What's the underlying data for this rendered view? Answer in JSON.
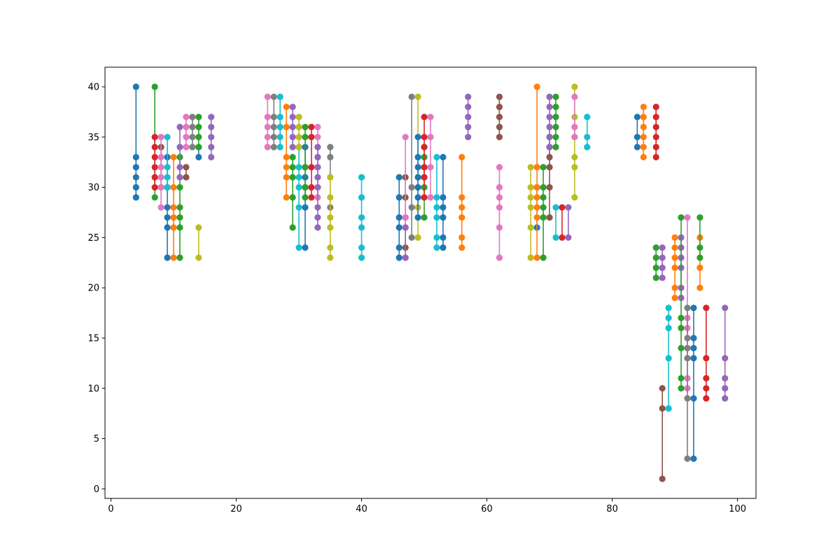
{
  "chart_data": {
    "type": "line",
    "title": "",
    "xlabel": "",
    "ylabel": "",
    "xlim": [
      -0.95,
      102.95
    ],
    "ylim": [
      -0.95,
      41.95
    ],
    "xticks": [
      0,
      20,
      40,
      60,
      80,
      100
    ],
    "yticks": [
      0,
      5,
      10,
      15,
      20,
      25,
      30,
      35,
      40
    ],
    "grid": false,
    "legend": "none",
    "marker": "circle",
    "series": [
      {
        "color": "#1f77b4",
        "x": 4,
        "y": [
          29,
          30,
          31,
          32,
          33,
          40
        ]
      },
      {
        "color": "#2ca02c",
        "x": 7,
        "y": [
          29,
          40
        ]
      },
      {
        "color": "#d62728",
        "x": 7,
        "y": [
          30,
          31,
          32,
          33,
          34,
          35
        ]
      },
      {
        "color": "#8c564b",
        "x": 8,
        "y": [
          30,
          34
        ]
      },
      {
        "color": "#e377c2",
        "x": 8,
        "y": [
          28,
          30,
          31,
          32,
          33,
          35
        ]
      },
      {
        "color": "#1f77b4",
        "x": 9,
        "y": [
          23,
          26,
          27,
          28,
          30,
          33
        ]
      },
      {
        "color": "#17becf",
        "x": 9,
        "y": [
          30,
          31,
          32,
          35
        ]
      },
      {
        "color": "#ff7f0e",
        "x": 10,
        "y": [
          23,
          26,
          27,
          28,
          30,
          33
        ]
      },
      {
        "color": "#2ca02c",
        "x": 11,
        "y": [
          23,
          26,
          27,
          28,
          30,
          33
        ]
      },
      {
        "color": "#9467bd",
        "x": 11,
        "y": [
          31,
          32,
          34,
          36
        ]
      },
      {
        "color": "#8c564b",
        "x": 12,
        "y": [
          31,
          32
        ]
      },
      {
        "color": "#e377c2",
        "x": 12,
        "y": [
          34,
          35,
          36,
          37
        ]
      },
      {
        "color": "#7f7f7f",
        "x": 13,
        "y": [
          34,
          35,
          36,
          37
        ]
      },
      {
        "color": "#1f77b4",
        "x": 14,
        "y": [
          33,
          34
        ]
      },
      {
        "color": "#2ca02c",
        "x": 14,
        "y": [
          34,
          35,
          36,
          37
        ]
      },
      {
        "color": "#bcbd22",
        "x": 14,
        "y": [
          23,
          26
        ]
      },
      {
        "color": "#9467bd",
        "x": 16,
        "y": [
          33,
          34,
          35,
          36,
          37
        ]
      },
      {
        "color": "#e377c2",
        "x": 25,
        "y": [
          34,
          35,
          36,
          37,
          39
        ]
      },
      {
        "color": "#7f7f7f",
        "x": 26,
        "y": [
          34,
          35,
          36,
          37,
          39
        ]
      },
      {
        "color": "#17becf",
        "x": 27,
        "y": [
          34,
          35,
          36,
          37,
          39
        ]
      },
      {
        "color": "#ff7f0e",
        "x": 28,
        "y": [
          29,
          31,
          32,
          33,
          36,
          38
        ]
      },
      {
        "color": "#2ca02c",
        "x": 29,
        "y": [
          26,
          29,
          31,
          32,
          33
        ]
      },
      {
        "color": "#9467bd",
        "x": 29,
        "y": [
          34,
          35,
          36,
          37,
          38
        ]
      },
      {
        "color": "#17becf",
        "x": 30,
        "y": [
          24,
          28,
          30,
          31,
          32,
          34
        ]
      },
      {
        "color": "#bcbd22",
        "x": 30,
        "y": [
          34,
          35,
          36,
          37
        ]
      },
      {
        "color": "#1f77b4",
        "x": 31,
        "y": [
          24,
          28,
          30,
          31,
          32,
          34
        ]
      },
      {
        "color": "#2ca02c",
        "x": 31,
        "y": [
          29,
          30,
          32,
          35,
          36
        ]
      },
      {
        "color": "#d62728",
        "x": 32,
        "y": [
          29,
          30,
          32,
          35,
          36
        ]
      },
      {
        "color": "#e377c2",
        "x": 33,
        "y": [
          29,
          30,
          32,
          33,
          35,
          36
        ]
      },
      {
        "color": "#9467bd",
        "x": 33,
        "y": [
          26,
          27,
          28,
          30,
          31,
          32,
          33,
          34
        ]
      },
      {
        "color": "#7f7f7f",
        "x": 35,
        "y": [
          28,
          33,
          34
        ]
      },
      {
        "color": "#bcbd22",
        "x": 35,
        "y": [
          23,
          24,
          26,
          27,
          29,
          31
        ]
      },
      {
        "color": "#17becf",
        "x": 40,
        "y": [
          23,
          24,
          26,
          27,
          29,
          31
        ]
      },
      {
        "color": "#1f77b4",
        "x": 46,
        "y": [
          23,
          24,
          26,
          27,
          29,
          31
        ]
      },
      {
        "color": "#8c564b",
        "x": 47,
        "y": [
          24,
          26,
          27,
          29,
          31
        ]
      },
      {
        "color": "#e377c2",
        "x": 47,
        "y": [
          23,
          26,
          27,
          35
        ]
      },
      {
        "color": "#9467bd",
        "x": 47,
        "y": [
          23,
          26
        ]
      },
      {
        "color": "#7f7f7f",
        "x": 48,
        "y": [
          25,
          28,
          30,
          39
        ]
      },
      {
        "color": "#bcbd22",
        "x": 49,
        "y": [
          25,
          28,
          30,
          39
        ]
      },
      {
        "color": "#1f77b4",
        "x": 49,
        "y": [
          27,
          29,
          30,
          31,
          32,
          33,
          35
        ]
      },
      {
        "color": "#2ca02c",
        "x": 50,
        "y": [
          27,
          30,
          31,
          32,
          33,
          34
        ]
      },
      {
        "color": "#d62728",
        "x": 50,
        "y": [
          29,
          31,
          32,
          34,
          35,
          37
        ]
      },
      {
        "color": "#e377c2",
        "x": 51,
        "y": [
          29,
          32,
          35,
          37
        ]
      },
      {
        "color": "#17becf",
        "x": 52,
        "y": [
          24,
          25,
          27,
          28,
          29,
          33
        ]
      },
      {
        "color": "#1f77b4",
        "x": 53,
        "y": [
          24,
          25,
          27,
          28,
          29,
          33
        ]
      },
      {
        "color": "#ff7f0e",
        "x": 56,
        "y": [
          24,
          25,
          27,
          28,
          29,
          33
        ]
      },
      {
        "color": "#9467bd",
        "x": 57,
        "y": [
          35,
          36,
          37,
          38,
          39
        ]
      },
      {
        "color": "#e377c2",
        "x": 62,
        "y": [
          23,
          26,
          28,
          29,
          30,
          32
        ]
      },
      {
        "color": "#8c564b",
        "x": 62,
        "y": [
          35,
          36,
          37,
          38,
          39
        ]
      },
      {
        "color": "#bcbd22",
        "x": 67,
        "y": [
          23,
          26,
          28,
          29,
          30,
          32
        ]
      },
      {
        "color": "#1f77b4",
        "x": 68,
        "y": [
          26,
          30
        ]
      },
      {
        "color": "#ff7f0e",
        "x": 68,
        "y": [
          23,
          27,
          28,
          29,
          30,
          32,
          40
        ]
      },
      {
        "color": "#2ca02c",
        "x": 69,
        "y": [
          23,
          27,
          28,
          29,
          30,
          32
        ]
      },
      {
        "color": "#8c564b",
        "x": 70,
        "y": [
          27,
          30,
          32,
          33,
          34,
          35
        ]
      },
      {
        "color": "#9467bd",
        "x": 70,
        "y": [
          34,
          35,
          36,
          37,
          38,
          39
        ]
      },
      {
        "color": "#2ca02c",
        "x": 71,
        "y": [
          34,
          35,
          36,
          37,
          38,
          39
        ]
      },
      {
        "color": "#17becf",
        "x": 71,
        "y": [
          25,
          28
        ]
      },
      {
        "color": "#d62728",
        "x": 72,
        "y": [
          25,
          28
        ]
      },
      {
        "color": "#9467bd",
        "x": 73,
        "y": [
          25,
          28
        ]
      },
      {
        "color": "#bcbd22",
        "x": 74,
        "y": [
          29,
          32,
          33,
          35,
          37,
          40
        ]
      },
      {
        "color": "#e377c2",
        "x": 74,
        "y": [
          35,
          36,
          39
        ]
      },
      {
        "color": "#17becf",
        "x": 76,
        "y": [
          34,
          35,
          37
        ]
      },
      {
        "color": "#1f77b4",
        "x": 84,
        "y": [
          34,
          35,
          37
        ]
      },
      {
        "color": "#ff7f0e",
        "x": 85,
        "y": [
          33,
          34,
          35,
          36,
          37,
          38
        ]
      },
      {
        "color": "#d62728",
        "x": 87,
        "y": [
          33,
          34,
          35,
          36,
          37,
          38
        ]
      },
      {
        "color": "#2ca02c",
        "x": 87,
        "y": [
          21,
          22,
          23,
          24
        ]
      },
      {
        "color": "#9467bd",
        "x": 88,
        "y": [
          21,
          22,
          23,
          24
        ]
      },
      {
        "color": "#8c564b",
        "x": 88,
        "y": [
          1,
          8,
          10
        ]
      },
      {
        "color": "#17becf",
        "x": 89,
        "y": [
          8,
          13,
          16,
          17,
          18
        ]
      },
      {
        "color": "#ff7f0e",
        "x": 90,
        "y": [
          19,
          20,
          22,
          23,
          24,
          25
        ]
      },
      {
        "color": "#9467bd",
        "x": 91,
        "y": [
          19,
          20,
          22,
          23,
          24,
          25
        ]
      },
      {
        "color": "#2ca02c",
        "x": 91,
        "y": [
          10,
          11,
          14,
          16,
          17,
          27
        ]
      },
      {
        "color": "#e377c2",
        "x": 92,
        "y": [
          10,
          11,
          14,
          16,
          17,
          27
        ]
      },
      {
        "color": "#7f7f7f",
        "x": 92,
        "y": [
          3,
          9,
          13,
          14,
          15,
          18
        ]
      },
      {
        "color": "#1f77b4",
        "x": 93,
        "y": [
          3,
          9,
          13,
          14,
          15,
          18
        ]
      },
      {
        "color": "#ff7f0e",
        "x": 94,
        "y": [
          20,
          22,
          25
        ]
      },
      {
        "color": "#2ca02c",
        "x": 94,
        "y": [
          23,
          24,
          27
        ]
      },
      {
        "color": "#d62728",
        "x": 95,
        "y": [
          9,
          10,
          11,
          13,
          18
        ]
      },
      {
        "color": "#9467bd",
        "x": 98,
        "y": [
          9,
          10,
          11,
          13,
          18
        ]
      }
    ]
  }
}
